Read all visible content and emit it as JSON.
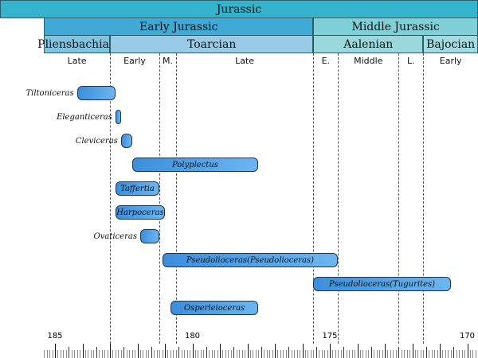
{
  "header": {
    "period": {
      "label": "Jurassic",
      "color": "#34b3cc"
    },
    "epochs": [
      {
        "label": "Early Jurassic",
        "start": 185.4,
        "end": 175.6,
        "color": "#40a9d5"
      },
      {
        "label": "Middle Jurassic",
        "start": 175.6,
        "end": 167.6,
        "color": "#80d0d8"
      }
    ],
    "stages": [
      {
        "label": "Pliensbachian",
        "start": 185.4,
        "end": 183.0,
        "color": "#80c4df"
      },
      {
        "label": "Toarcian",
        "start": 183.0,
        "end": 175.6,
        "color": "#9acbe6"
      },
      {
        "label": "Aalenian",
        "start": 175.6,
        "end": 171.6,
        "color": "#9ad8dc"
      },
      {
        "label": "Bajocian",
        "start": 171.6,
        "end": 167.6,
        "color": "#a2dbe0"
      }
    ],
    "substages": [
      {
        "label": "Late",
        "start": 185.4,
        "end": 183.0
      },
      {
        "label": "Early",
        "start": 183.0,
        "end": 181.2
      },
      {
        "label": "M.",
        "start": 181.2,
        "end": 180.6
      },
      {
        "label": "Late",
        "start": 180.6,
        "end": 175.6
      },
      {
        "label": "E.",
        "start": 175.6,
        "end": 174.7
      },
      {
        "label": "Middle",
        "start": 174.7,
        "end": 172.5
      },
      {
        "label": "L.",
        "start": 172.5,
        "end": 171.6
      },
      {
        "label": "Early",
        "start": 171.6,
        "end": 167.6
      }
    ],
    "boundaries": [
      183.0,
      181.2,
      180.6,
      175.6,
      174.7,
      172.5,
      171.6
    ]
  },
  "taxa": [
    {
      "name": "Tiltoniceras",
      "start": 184.2,
      "end": 182.8,
      "label_inside": false
    },
    {
      "name": "Eleganticeras",
      "start": 182.8,
      "end": 182.6,
      "label_inside": false
    },
    {
      "name": "Cleviceras",
      "start": 182.6,
      "end": 182.2,
      "label_inside": false
    },
    {
      "name": "Polyplectus",
      "start": 182.2,
      "end": 177.6,
      "label_inside": true
    },
    {
      "name": "Taffertia",
      "start": 182.8,
      "end": 181.2,
      "label_inside": true
    },
    {
      "name": "Harpoceras",
      "start": 182.8,
      "end": 181.0,
      "label_inside": true
    },
    {
      "name": "Ovaticeras",
      "start": 181.9,
      "end": 181.2,
      "label_inside": false
    },
    {
      "name": "Pseudolioceras(Pseudolioceras)",
      "start": 181.1,
      "end": 174.7,
      "label_inside": true
    },
    {
      "name": "Pseudolioceras(Tugurites)",
      "start": 175.6,
      "end": 170.6,
      "label_inside": true
    },
    {
      "name": "Osperleioceras",
      "start": 180.8,
      "end": 177.6,
      "label_inside": true
    }
  ],
  "axis": {
    "ticks": [
      "185",
      "180",
      "175",
      "170"
    ],
    "tick_values": [
      185,
      180,
      175,
      170
    ],
    "unit_minor": 0.1
  }
}
